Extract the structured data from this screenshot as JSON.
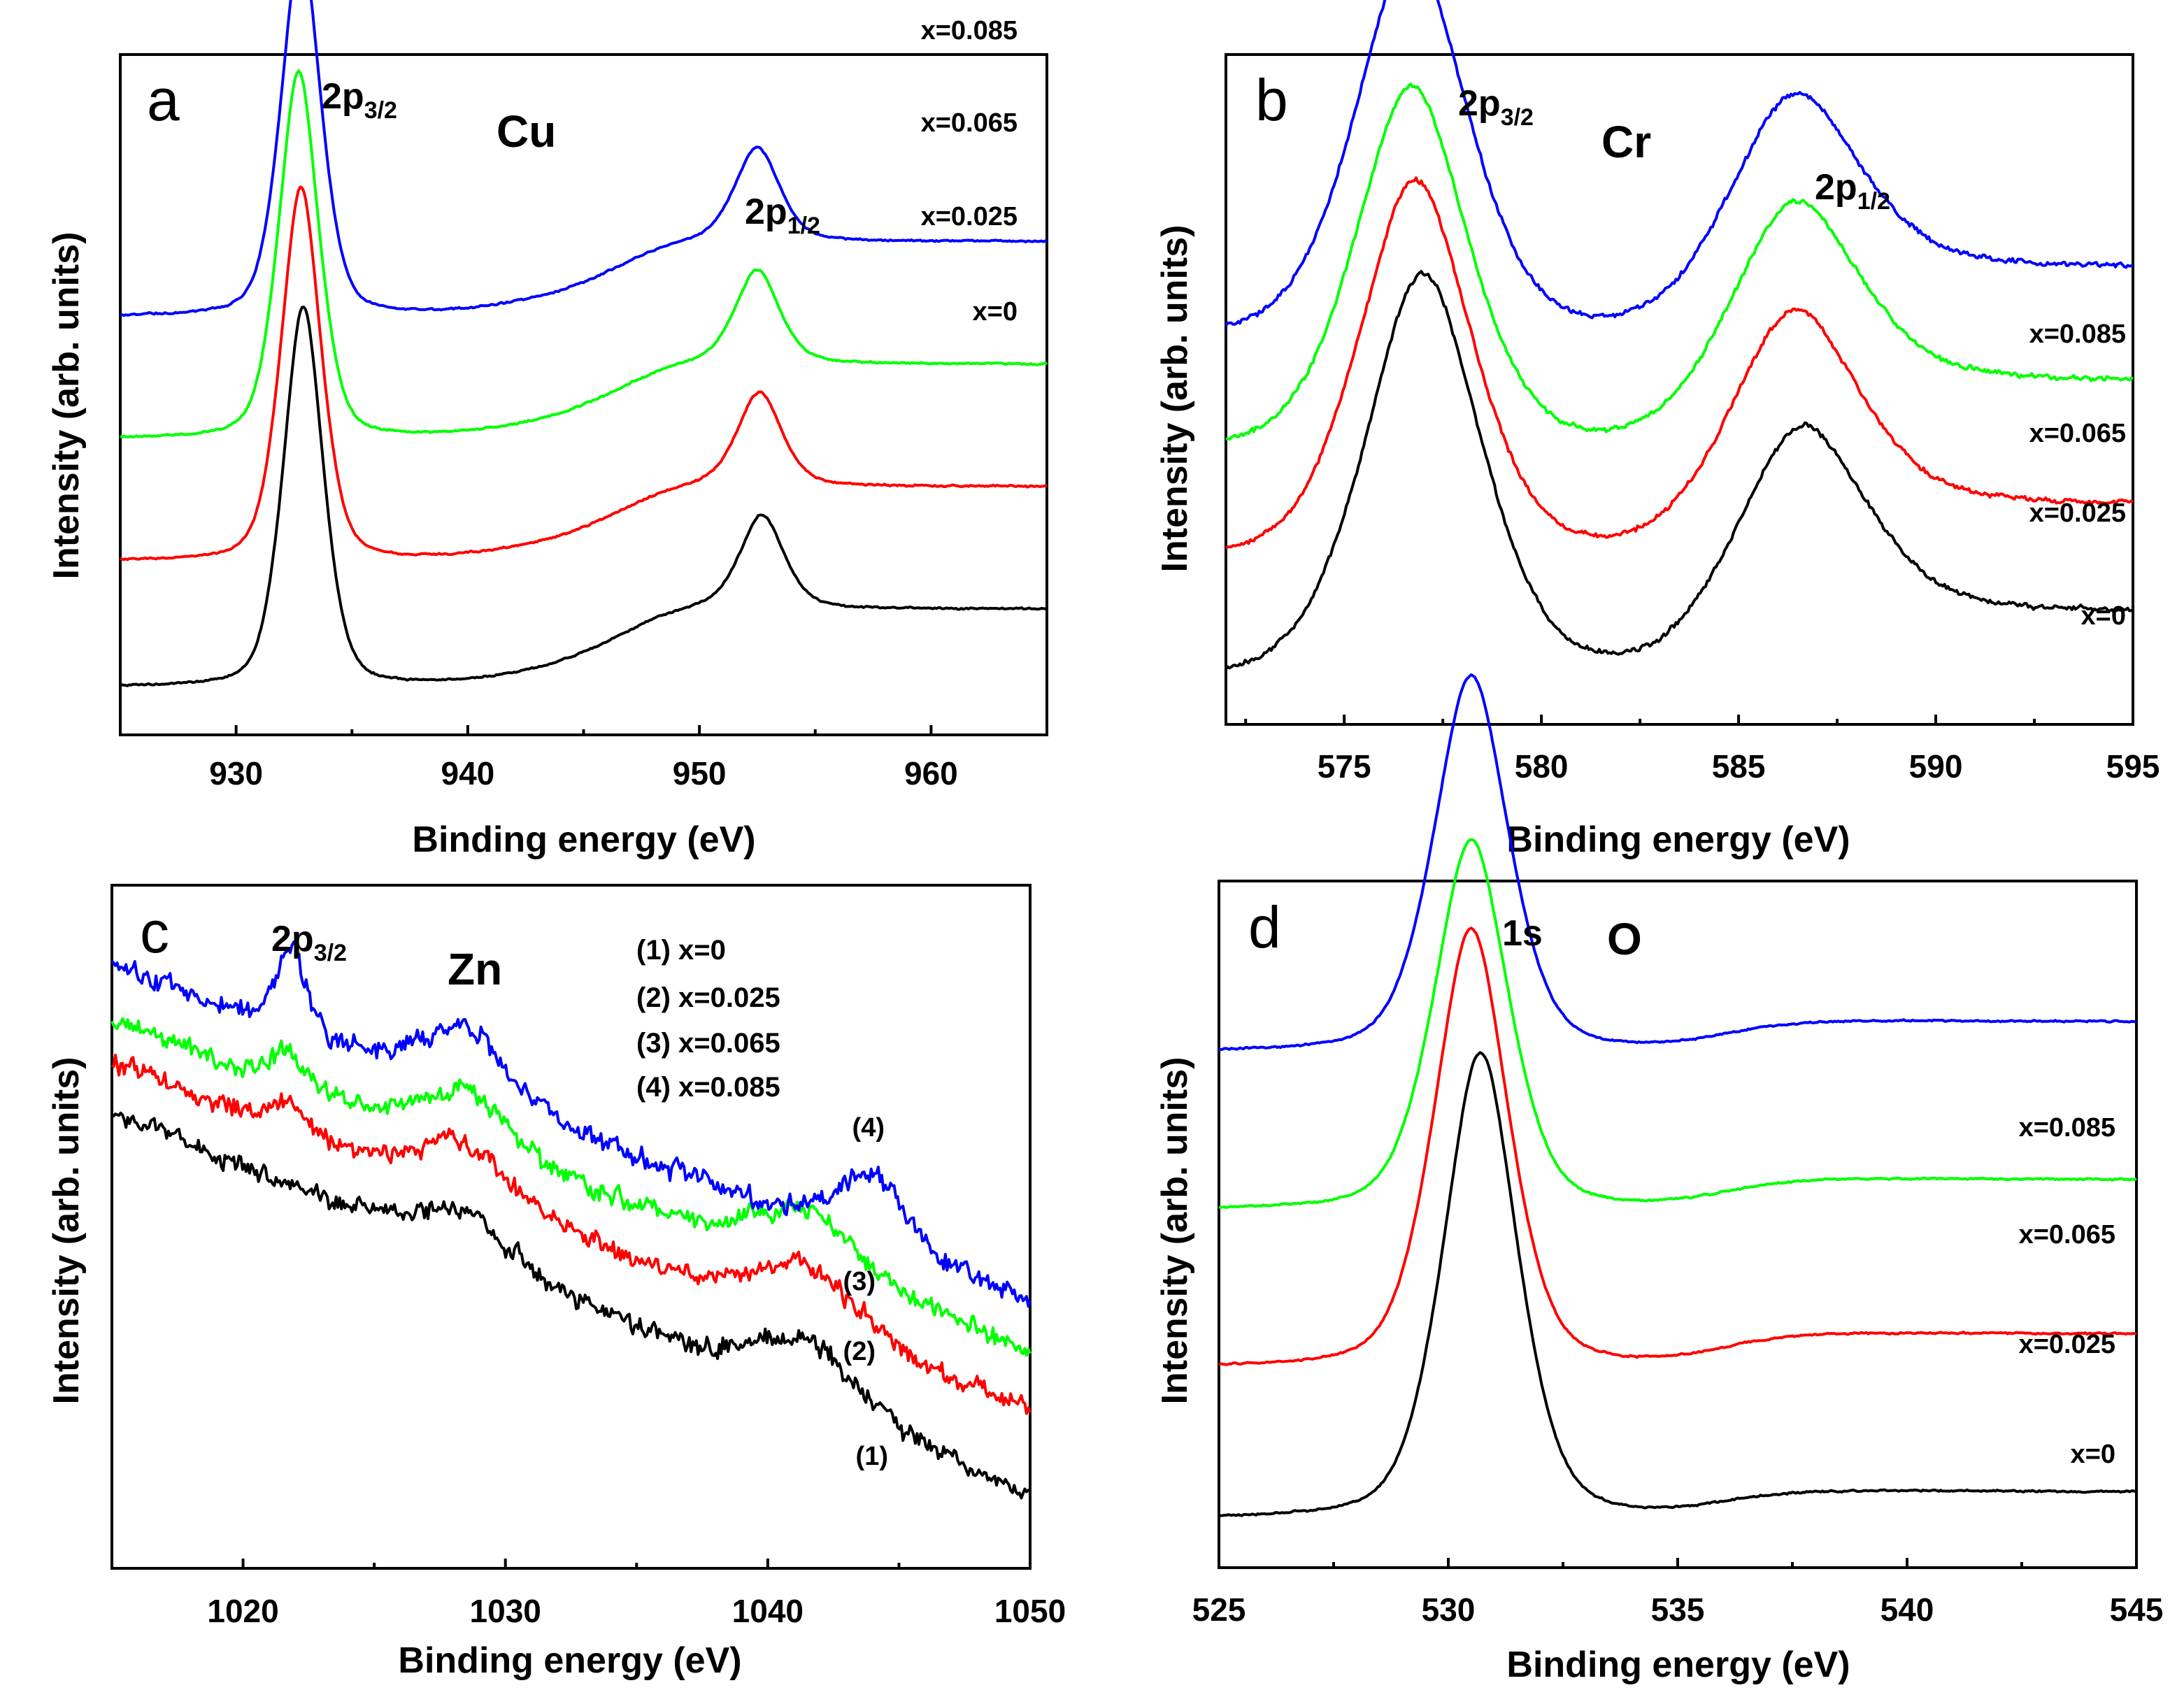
{
  "chart_data": [
    {
      "type": "line",
      "panel_label": "a",
      "element": "Cu",
      "xlabel": "Binding energy (eV)",
      "ylabel": "Intensity (arb. units)",
      "xlim": [
        925,
        965
      ],
      "ylim": [
        0,
        100
      ],
      "xticks": [
        "930",
        "940",
        "950",
        "960"
      ],
      "peaks": [
        {
          "main": "2p",
          "sub": "3/2",
          "x": 933.0
        },
        {
          "main": "2p",
          "sub": "1/2",
          "x": 952.6
        }
      ],
      "noise": 0.15,
      "series": [
        {
          "name": "x=0",
          "color": "#000000",
          "offset": 7,
          "end": 18.5,
          "peaks": [
            [
              932.9,
              56,
              0.9
            ],
            [
              952.7,
              13.5,
              1.0
            ]
          ],
          "broad": [
            [
              946,
              2.5,
              4
            ]
          ]
        },
        {
          "name": "x=0.025",
          "color": "#ff0000",
          "offset": 25.5,
          "end": 36.5,
          "peaks": [
            [
              932.8,
              55,
              0.9
            ],
            [
              952.6,
              13.5,
              1.0
            ]
          ],
          "broad": [
            [
              946,
              2.5,
              4
            ]
          ]
        },
        {
          "name": "x=0.065",
          "color": "#00ff00",
          "offset": 43.5,
          "end": 54.5,
          "peaks": [
            [
              932.7,
              54,
              0.9
            ],
            [
              952.5,
              13.5,
              1.0
            ]
          ],
          "broad": [
            [
              946,
              2.5,
              4
            ]
          ]
        },
        {
          "name": "x=0.085",
          "color": "#0000ff",
          "offset": 61.5,
          "end": 72.5,
          "peaks": [
            [
              932.8,
              54.5,
              0.9
            ],
            [
              952.5,
              13.5,
              1.0
            ]
          ],
          "broad": [
            [
              946,
              2.5,
              4
            ]
          ]
        }
      ]
    },
    {
      "type": "line",
      "panel_label": "b",
      "element": "Cr",
      "xlabel": "Binding energy (eV)",
      "ylabel": "Intensity (arb. units)",
      "xlim": [
        572,
        595
      ],
      "ylim": [
        0,
        100
      ],
      "xticks": [
        "575",
        "580",
        "585",
        "590",
        "595"
      ],
      "peaks": [
        {
          "main": "2p",
          "sub": "3/2",
          "x": 576.8
        },
        {
          "main": "2p",
          "sub": "1/2",
          "x": 586.5
        }
      ],
      "noise": 0.45,
      "series": [
        {
          "name": "x=0",
          "color": "#000000",
          "offset": 6,
          "end": 16.5,
          "peaks": [
            [
              577.0,
              61,
              1.55
            ],
            [
              586.6,
              28.5,
              1.7
            ]
          ],
          "broad": []
        },
        {
          "name": "x=0.025",
          "color": "#ff0000",
          "offset": 24,
          "end": 32.5,
          "peaks": [
            [
              576.8,
              57,
              1.5
            ],
            [
              586.4,
              30,
              1.7
            ]
          ],
          "broad": []
        },
        {
          "name": "x=0.065",
          "color": "#00ff00",
          "offset": 40,
          "end": 51,
          "peaks": [
            [
              576.7,
              55,
              1.5
            ],
            [
              586.4,
              28,
              1.7
            ]
          ],
          "broad": []
        },
        {
          "name": "x=0.085",
          "color": "#0000ff",
          "offset": 57,
          "end": 68,
          "peaks": [
            [
              576.7,
              58,
              1.5
            ],
            [
              586.4,
              27,
              1.7
            ]
          ],
          "broad": []
        }
      ]
    },
    {
      "type": "line",
      "panel_label": "c",
      "element": "Zn",
      "xlabel": "Binding energy (eV)",
      "ylabel": "Intensity (arb. units)",
      "xlim": [
        1015,
        1050
      ],
      "ylim": [
        0,
        100
      ],
      "xticks": [
        "1020",
        "1030",
        "1040",
        "1050"
      ],
      "peaks": [
        {
          "main": "2p",
          "sub": "3/2",
          "x": 1021.8
        }
      ],
      "legend": [
        "(1) x=0",
        "(2) x=0.025",
        "(3) x=0.065",
        "(4) x=0.085"
      ],
      "noise": 1.8,
      "series": [
        {
          "name": "(1)",
          "color": "#000000",
          "start": 67,
          "end": 11,
          "peaks": [
            [
              1028.5,
              7,
              1.8
            ],
            [
              1041.5,
              9,
              2.0
            ]
          ],
          "broad": []
        },
        {
          "name": "(2)",
          "color": "#ff0000",
          "start": 74,
          "end": 23,
          "peaks": [
            [
              1021.8,
              4,
              0.6
            ],
            [
              1028.5,
              8,
              1.8
            ],
            [
              1041.5,
              9,
              2.0
            ]
          ],
          "broad": []
        },
        {
          "name": "(3)",
          "color": "#00ff00",
          "start": 80,
          "end": 32,
          "peaks": [
            [
              1021.8,
              5,
              0.6
            ],
            [
              1028.5,
              8,
              1.8
            ],
            [
              1041.5,
              9,
              2.0
            ]
          ],
          "broad": []
        },
        {
          "name": "(4)",
          "color": "#0000ff",
          "start": 88,
          "end": 39,
          "peaks": [
            [
              1021.8,
              12,
              0.6
            ],
            [
              1028.5,
              10,
              1.8
            ],
            [
              1044.0,
              10,
              1.4
            ]
          ],
          "broad": []
        }
      ]
    },
    {
      "type": "line",
      "panel_label": "d",
      "element": "O",
      "xlabel": "Binding energy (eV)",
      "ylabel": "Intensity (arb. units)",
      "xlim": [
        525,
        545
      ],
      "ylim": [
        0,
        100
      ],
      "xticks": [
        "525",
        "530",
        "535",
        "540",
        "545"
      ],
      "peaks": [
        {
          "main": "1s",
          "sub": "",
          "x": 530.6
        }
      ],
      "noise": 0.15,
      "series": [
        {
          "name": "x=0",
          "color": "#000000",
          "offset": 7,
          "end": 11,
          "peaks": [
            [
              530.7,
              68,
              0.85
            ]
          ],
          "broad": []
        },
        {
          "name": "x=0.025",
          "color": "#ff0000",
          "offset": 29,
          "end": 34,
          "peaks": [
            [
              530.5,
              64,
              0.85
            ]
          ],
          "broad": []
        },
        {
          "name": "x=0.065",
          "color": "#00ff00",
          "offset": 52,
          "end": 56.5,
          "peaks": [
            [
              530.5,
              54,
              0.85
            ]
          ],
          "broad": []
        },
        {
          "name": "x=0.085",
          "color": "#0000ff",
          "offset": 75,
          "end": 79.5,
          "peaks": [
            [
              530.5,
              55,
              0.85
            ]
          ],
          "broad": []
        }
      ]
    }
  ]
}
